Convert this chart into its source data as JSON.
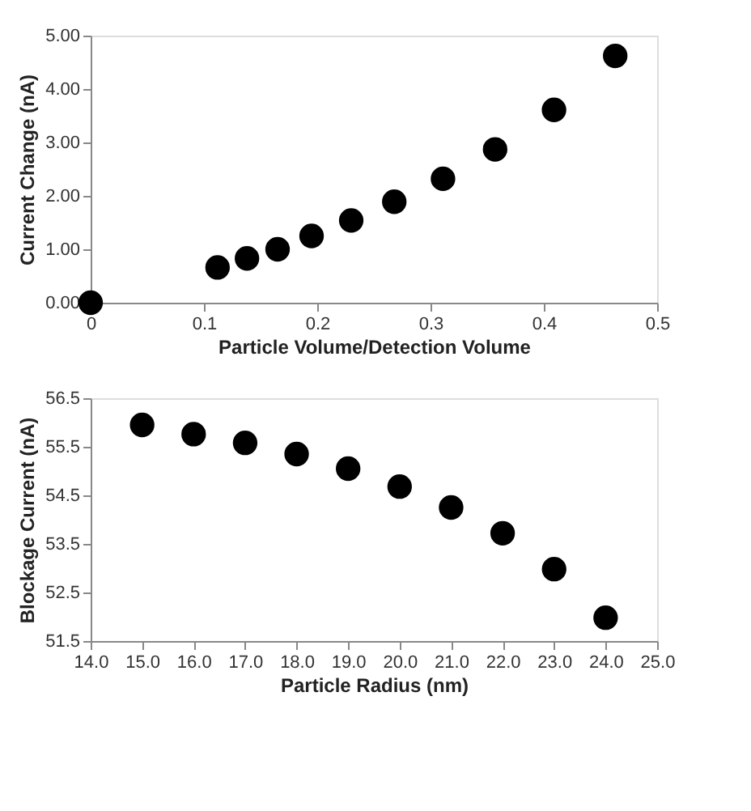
{
  "chart_data": [
    {
      "type": "scatter",
      "xlabel": "Particle Volume/Detection Volume",
      "ylabel": "Current Change (nA)",
      "marker": "circle",
      "grid": false,
      "x": [
        0,
        0.112,
        0.138,
        0.165,
        0.195,
        0.23,
        0.268,
        0.311,
        0.357,
        0.409,
        0.463
      ],
      "series": [
        {
          "color": "#000000",
          "values": [
            0,
            0.66,
            0.83,
            1.0,
            1.25,
            1.54,
            1.89,
            2.32,
            2.87,
            3.61,
            4.62
          ]
        }
      ],
      "xlim": [
        0,
        0.5
      ],
      "xticks": [
        0,
        0.1,
        0.2,
        0.3,
        0.4,
        0.5
      ],
      "ylim": [
        0,
        5
      ],
      "yticks": [
        {
          "value": 0,
          "label": "0.00"
        },
        {
          "value": 1,
          "label": "1.00"
        },
        {
          "value": 2,
          "label": "2.00"
        },
        {
          "value": 3,
          "label": "3.00"
        },
        {
          "value": 4,
          "label": "4.00"
        },
        {
          "value": 5,
          "label": "5.00"
        }
      ]
    },
    {
      "type": "scatter",
      "xlabel": "Particle Radius (nm)",
      "ylabel": "Blockage Current (nA)",
      "marker": "circle",
      "grid": false,
      "x": [
        15,
        16,
        17,
        18,
        19,
        20,
        21,
        22,
        23,
        24
      ],
      "series": [
        {
          "color": "#000000",
          "values": [
            55.95,
            55.76,
            55.58,
            55.35,
            55.05,
            54.68,
            54.25,
            53.72,
            52.98,
            51.98
          ]
        }
      ],
      "xlim": [
        14,
        25
      ],
      "xticks": [
        {
          "value": 14,
          "label": "14.0"
        },
        {
          "value": 15,
          "label": "15.0"
        },
        {
          "value": 16,
          "label": "16.0"
        },
        {
          "value": 17,
          "label": "17.0"
        },
        {
          "value": 18,
          "label": "18.0"
        },
        {
          "value": 19,
          "label": "19.0"
        },
        {
          "value": 20,
          "label": "20.0"
        },
        {
          "value": 21,
          "label": "21.0"
        },
        {
          "value": 22,
          "label": "22.0"
        },
        {
          "value": 23,
          "label": "23.0"
        },
        {
          "value": 24,
          "label": "24.0"
        },
        {
          "value": 25,
          "label": "25.0"
        }
      ],
      "ylim": [
        51.5,
        56.5
      ],
      "yticks": [
        51.5,
        52.5,
        53.5,
        54.5,
        55.5,
        56.5
      ]
    }
  ]
}
